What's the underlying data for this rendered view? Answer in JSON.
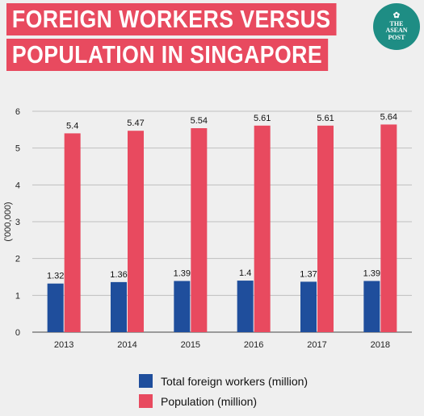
{
  "header": {
    "title_line1": "Foreign workers versus",
    "title_line2": "population in Singapore",
    "logo_text": [
      "THE",
      "ASEAN",
      "POST"
    ]
  },
  "colors": {
    "foreign_workers": "#1f4e9c",
    "population": "#e84a5f",
    "title_bg": "#e84a5f",
    "logo_bg": "#1e8d84",
    "grid": "#bfbfbf"
  },
  "chart_data": {
    "type": "bar",
    "title": "Foreign workers versus population in Singapore",
    "categories": [
      "2013",
      "2014",
      "2015",
      "2016",
      "2017",
      "2018"
    ],
    "ylabel": "('000,000)",
    "xlabel": "",
    "ylim": [
      0,
      6
    ],
    "yticks": [
      "0",
      "1",
      "2",
      "3",
      "4",
      "5",
      "6"
    ],
    "grid": true,
    "legend_position": "bottom",
    "series": [
      {
        "name": "Total foreign workers (million)",
        "values": [
          1.32,
          1.36,
          1.39,
          1.4,
          1.37,
          1.39
        ],
        "labels": [
          "1.32",
          "1.36",
          "1.39",
          "1.4",
          "1.37",
          "1.39"
        ]
      },
      {
        "name": "Population (million)",
        "values": [
          5.4,
          5.47,
          5.54,
          5.61,
          5.61,
          5.64
        ],
        "labels": [
          "5.4",
          "5.47",
          "5.54",
          "5.61",
          "5.61",
          "5.64"
        ]
      }
    ]
  }
}
